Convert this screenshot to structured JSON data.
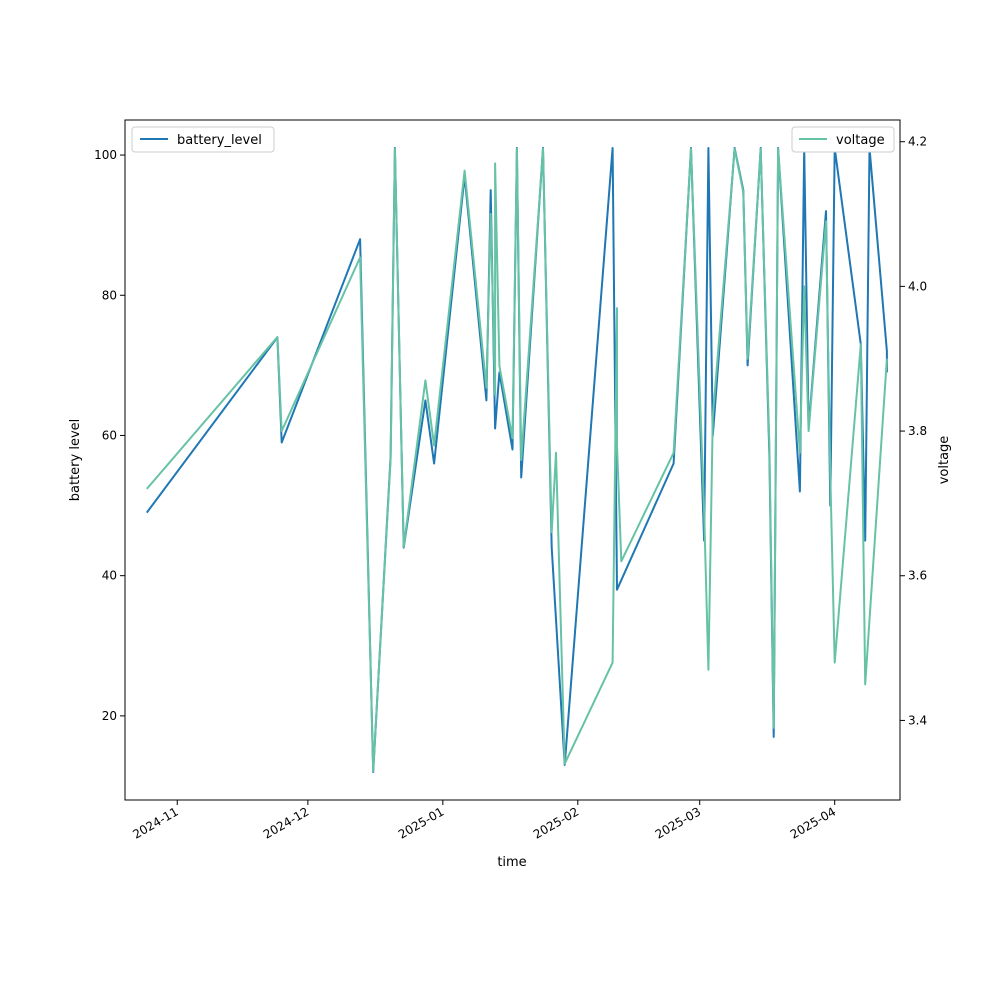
{
  "chart_data": {
    "type": "line",
    "xlabel": "time",
    "ylabel": "battery level",
    "y2label": "voltage",
    "x_tick_labels": [
      "2024-11",
      "2024-12",
      "2025-01",
      "2025-02",
      "2025-03",
      "2025-04"
    ],
    "x_ticks": [
      "2024-11-01",
      "2024-12-01",
      "2025-01-01",
      "2025-02-01",
      "2025-03-01",
      "2025-04-01"
    ],
    "xlim": [
      "2024-10-20",
      "2025-04-16"
    ],
    "ylim": [
      8,
      105
    ],
    "y_ticks": [
      20,
      40,
      60,
      80,
      100
    ],
    "y2lim": [
      3.29,
      4.23
    ],
    "y2_ticks": [
      3.4,
      3.6,
      3.8,
      4.0,
      4.2
    ],
    "y2_tick_labels": [
      "3.4",
      "3.6",
      "3.8",
      "4.0",
      "4.2"
    ],
    "grid": false,
    "series": [
      {
        "name": "battery_level",
        "axis": "left",
        "color": "#1f77b4",
        "legend_position": "upper-left",
        "points": [
          [
            "2024-10-25",
            49
          ],
          [
            "2024-11-24",
            74
          ],
          [
            "2024-11-25",
            59
          ],
          [
            "2024-12-13",
            88
          ],
          [
            "2024-12-16",
            12
          ],
          [
            "2024-12-20",
            57
          ],
          [
            "2024-12-21",
            101
          ],
          [
            "2024-12-23",
            44
          ],
          [
            "2024-12-28",
            65
          ],
          [
            "2024-12-30",
            56
          ],
          [
            "2025-01-06",
            97
          ],
          [
            "2025-01-11",
            65
          ],
          [
            "2025-01-12",
            95
          ],
          [
            "2025-01-13",
            61
          ],
          [
            "2025-01-14",
            69
          ],
          [
            "2025-01-17",
            58
          ],
          [
            "2025-01-18",
            101
          ],
          [
            "2025-01-19",
            54
          ],
          [
            "2025-01-24",
            101
          ],
          [
            "2025-01-26",
            44
          ],
          [
            "2025-01-29",
            13
          ],
          [
            "2025-02-09",
            101
          ],
          [
            "2025-02-10",
            38
          ],
          [
            "2025-02-23",
            56
          ],
          [
            "2025-02-27",
            101
          ],
          [
            "2025-03-02",
            45
          ],
          [
            "2025-03-03",
            101
          ],
          [
            "2025-03-04",
            60
          ],
          [
            "2025-03-09",
            101
          ],
          [
            "2025-03-11",
            95
          ],
          [
            "2025-03-12",
            70
          ],
          [
            "2025-03-15",
            101
          ],
          [
            "2025-03-17",
            57
          ],
          [
            "2025-03-18",
            17
          ],
          [
            "2025-03-19",
            101
          ],
          [
            "2025-03-24",
            52
          ],
          [
            "2025-03-25",
            101
          ],
          [
            "2025-03-26",
            61
          ],
          [
            "2025-03-30",
            92
          ],
          [
            "2025-03-31",
            50
          ],
          [
            "2025-04-01",
            101
          ],
          [
            "2025-04-07",
            73
          ],
          [
            "2025-04-08",
            45
          ],
          [
            "2025-04-09",
            101
          ],
          [
            "2025-04-13",
            72
          ],
          [
            "2025-04-13",
            69
          ]
        ]
      },
      {
        "name": "voltage",
        "axis": "right",
        "color": "#66c2a5",
        "legend_position": "upper-right",
        "points": [
          [
            "2024-10-25",
            3.72
          ],
          [
            "2024-11-24",
            3.93
          ],
          [
            "2024-11-25",
            3.8
          ],
          [
            "2024-12-13",
            4.04
          ],
          [
            "2024-12-16",
            3.33
          ],
          [
            "2024-12-20",
            3.76
          ],
          [
            "2024-12-21",
            4.19
          ],
          [
            "2024-12-23",
            3.64
          ],
          [
            "2024-12-28",
            3.87
          ],
          [
            "2024-12-30",
            3.78
          ],
          [
            "2025-01-06",
            4.16
          ],
          [
            "2025-01-11",
            3.86
          ],
          [
            "2025-01-12",
            4.1
          ],
          [
            "2025-01-13",
            3.85
          ],
          [
            "2025-01-13",
            4.17
          ],
          [
            "2025-01-14",
            3.89
          ],
          [
            "2025-01-17",
            3.79
          ],
          [
            "2025-01-18",
            4.19
          ],
          [
            "2025-01-19",
            3.76
          ],
          [
            "2025-01-24",
            4.19
          ],
          [
            "2025-01-26",
            3.66
          ],
          [
            "2025-01-27",
            3.77
          ],
          [
            "2025-01-29",
            3.34
          ],
          [
            "2025-02-09",
            3.48
          ],
          [
            "2025-02-10",
            3.97
          ],
          [
            "2025-02-10",
            3.78
          ],
          [
            "2025-02-11",
            3.62
          ],
          [
            "2025-02-23",
            3.77
          ],
          [
            "2025-02-27",
            4.19
          ],
          [
            "2025-03-02",
            3.69
          ],
          [
            "2025-03-03",
            3.47
          ],
          [
            "2025-03-04",
            3.82
          ],
          [
            "2025-03-09",
            4.19
          ],
          [
            "2025-03-11",
            4.13
          ],
          [
            "2025-03-12",
            3.9
          ],
          [
            "2025-03-15",
            4.19
          ],
          [
            "2025-03-17",
            3.78
          ],
          [
            "2025-03-18",
            3.39
          ],
          [
            "2025-03-19",
            4.19
          ],
          [
            "2025-03-24",
            3.77
          ],
          [
            "2025-03-25",
            4.0
          ],
          [
            "2025-03-26",
            3.8
          ],
          [
            "2025-03-30",
            4.09
          ],
          [
            "2025-03-31",
            3.74
          ],
          [
            "2025-04-01",
            3.48
          ],
          [
            "2025-04-07",
            3.92
          ],
          [
            "2025-04-08",
            3.45
          ],
          [
            "2025-04-13",
            3.9
          ]
        ]
      }
    ]
  }
}
